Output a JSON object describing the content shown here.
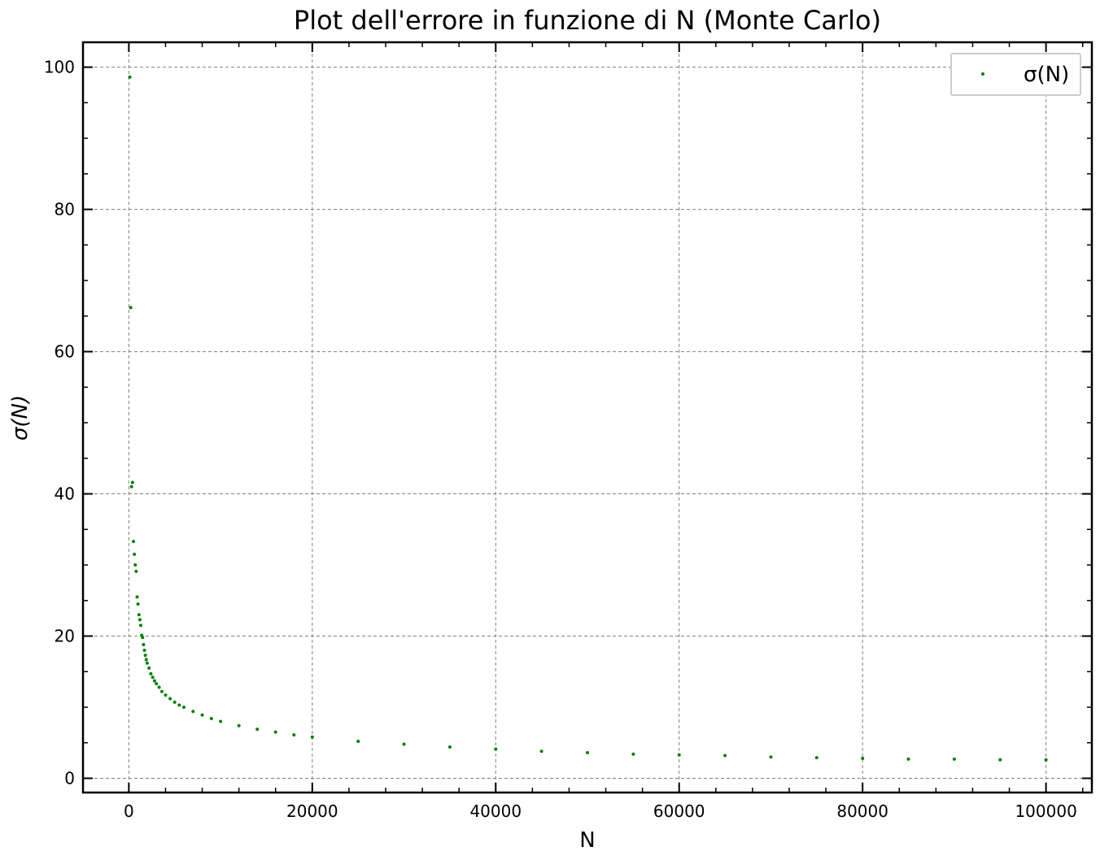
{
  "chart_data": {
    "type": "scatter",
    "title": "Plot dell'errore in funzione di N (Monte Carlo)",
    "xlabel": "N",
    "ylabel": "σ(N)",
    "xlim": [
      -5000,
      105000
    ],
    "ylim": [
      -2,
      103.5
    ],
    "xticks": [
      0,
      20000,
      40000,
      60000,
      80000,
      100000
    ],
    "xtick_labels": [
      "0",
      "20000",
      "40000",
      "60000",
      "80000",
      "100000"
    ],
    "yticks": [
      0,
      20,
      40,
      60,
      80,
      100
    ],
    "ytick_labels": [
      "0",
      "20",
      "40",
      "60",
      "80",
      "100"
    ],
    "grid": true,
    "legend": {
      "position": "top-right",
      "entries": [
        "σ(N)"
      ]
    },
    "series": [
      {
        "name": "σ(N)",
        "color": "#008000",
        "x": [
          100,
          200,
          300,
          400,
          500,
          600,
          700,
          800,
          900,
          1000,
          1100,
          1200,
          1300,
          1400,
          1500,
          1600,
          1700,
          1800,
          1900,
          2000,
          2200,
          2400,
          2600,
          2800,
          3000,
          3300,
          3600,
          4000,
          4500,
          5000,
          5500,
          6000,
          7000,
          8000,
          9000,
          10000,
          12000,
          14000,
          16000,
          18000,
          20000,
          25000,
          30000,
          35000,
          40000,
          45000,
          50000,
          55000,
          60000,
          65000,
          70000,
          75000,
          80000,
          85000,
          90000,
          95000,
          100000
        ],
        "values": [
          98.6,
          66.2,
          41.0,
          41.6,
          33.3,
          31.5,
          30.0,
          29.1,
          25.5,
          24.5,
          23.0,
          22.3,
          21.5,
          20.1,
          19.8,
          18.8,
          18.0,
          17.3,
          16.7,
          16.2,
          15.5,
          14.7,
          14.2,
          13.7,
          13.3,
          12.8,
          12.2,
          11.7,
          11.2,
          10.7,
          10.3,
          10.0,
          9.4,
          8.9,
          8.4,
          8.0,
          7.4,
          6.9,
          6.5,
          6.1,
          5.8,
          5.2,
          4.8,
          4.4,
          4.1,
          3.8,
          3.6,
          3.4,
          3.3,
          3.2,
          3.0,
          2.9,
          2.8,
          2.7,
          2.7,
          2.6,
          2.6
        ]
      }
    ]
  }
}
